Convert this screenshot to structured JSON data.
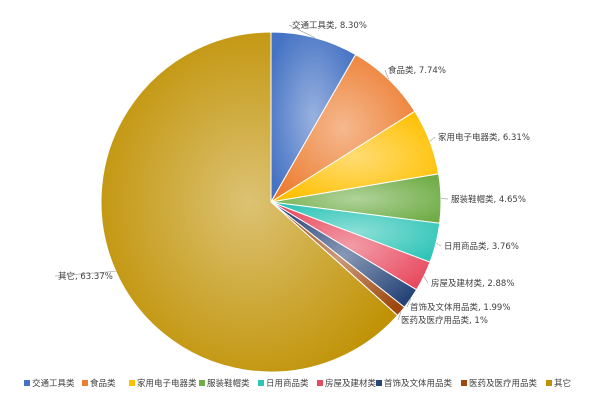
{
  "chart_data": {
    "type": "pie",
    "title": "",
    "legend_position": "bottom",
    "slices": [
      {
        "name": "交通工具类",
        "value": 8.3,
        "label": "交通工具类, 8.30%",
        "color": "#4472C4"
      },
      {
        "name": "食品类",
        "value": 7.74,
        "label": "食品类, 7.74%",
        "color": "#ED7D31"
      },
      {
        "name": "家用电子电器类",
        "value": 6.31,
        "label": "家用电子电器类, 6.31%",
        "color": "#FFC000"
      },
      {
        "name": "服装鞋帽类",
        "value": 4.65,
        "label": "服装鞋帽类, 4.65%",
        "color": "#70AD47"
      },
      {
        "name": "日用商品类",
        "value": 3.76,
        "label": "日用商品类, 3.76%",
        "color": "#2EC4B6"
      },
      {
        "name": "房屋及建材类",
        "value": 2.88,
        "label": "房屋及建材类, 2.88%",
        "color": "#E84A5F"
      },
      {
        "name": "首饰及文体用品类",
        "value": 1.99,
        "label": "首饰及文体用品类, 1.99%",
        "color": "#264478"
      },
      {
        "name": "医药及医疗用品类",
        "value": 1.0,
        "label": "医药及医疗用品类, 1%",
        "color": "#9E480E"
      },
      {
        "name": "其它",
        "value": 63.37,
        "label": "其它, 63.37%",
        "color": "#BF9000"
      }
    ]
  }
}
